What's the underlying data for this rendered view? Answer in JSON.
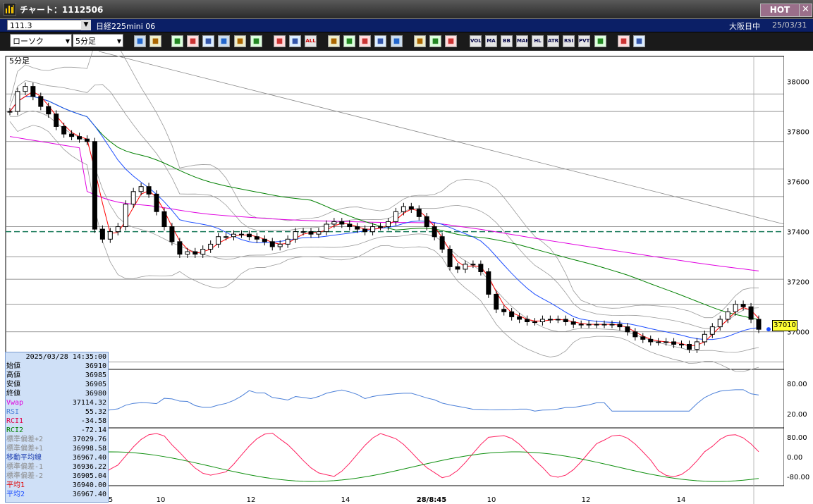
{
  "window": {
    "title": "チャート：1112506",
    "hot_label": "HOT",
    "close_glyph": "✕"
  },
  "symbol": {
    "code": "111.3",
    "name": "日経225mini 06",
    "session": "大阪日中",
    "date": "25/03/31"
  },
  "toolbar": {
    "chart_type": "ローソク",
    "interval": "5分足",
    "buttons": [
      "zoom",
      "grid",
      "trend",
      "pen",
      "cursor",
      "redo",
      "copy",
      "delete",
      "box",
      "box2",
      "ALL",
      "aim",
      "search",
      "split",
      "add",
      "note",
      "settings",
      "tool",
      "color",
      "VOL",
      "MA",
      "BB",
      "MAE",
      "HL",
      "ATR",
      "RSI",
      "PVT",
      "frame",
      "Log",
      "window"
    ]
  },
  "chart_label": "5分足",
  "price_tag": "37010",
  "colors": {
    "sma_short": "#ff0000",
    "sma_long": "#1e4fff",
    "vwap": "#e000e0",
    "long_ma": "#008000",
    "band": "#9a9a9a",
    "rsi": "#4a7fd8",
    "rci1": "#ff2060",
    "rci2": "#109010",
    "panel_bg": "#cfe0f7"
  },
  "chart_data": [
    {
      "type": "candlestick",
      "title": "5分足",
      "x_ticks": [
        "5",
        "10",
        "12",
        "14",
        "28/8:45",
        "10",
        "12",
        "14"
      ],
      "y_ticks": [
        38000,
        37800,
        37600,
        37400,
        37200,
        37000
      ],
      "ylim": [
        36850,
        38100
      ],
      "dashed_level": 37400,
      "last_price": 37010,
      "close_series": [
        37880,
        37960,
        37980,
        37940,
        37900,
        37870,
        37820,
        37790,
        37780,
        37770,
        37760,
        37410,
        37370,
        37400,
        37420,
        37510,
        37560,
        37580,
        37550,
        37480,
        37420,
        37360,
        37310,
        37320,
        37310,
        37330,
        37350,
        37380,
        37380,
        37390,
        37390,
        37380,
        37370,
        37360,
        37340,
        37350,
        37370,
        37400,
        37400,
        37390,
        37400,
        37430,
        37440,
        37430,
        37420,
        37410,
        37400,
        37420,
        37420,
        37440,
        37480,
        37500,
        37490,
        37460,
        37420,
        37380,
        37330,
        37260,
        37250,
        37270,
        37270,
        37240,
        37150,
        37090,
        37080,
        37060,
        37050,
        37040,
        37040,
        37050,
        37050,
        37050,
        37040,
        37030,
        37030,
        37030,
        37030,
        37030,
        37030,
        37020,
        37000,
        36980,
        36970,
        36960,
        36960,
        36960,
        36950,
        36950,
        36930,
        36960,
        36990,
        37020,
        37050,
        37080,
        37110,
        37100,
        37050,
        37010
      ]
    },
    {
      "type": "line",
      "title": "RSI",
      "y_ticks": [
        "80.00",
        "20.00"
      ],
      "ylim": [
        0,
        100
      ]
    },
    {
      "type": "line",
      "title": "RCI",
      "y_ticks": [
        "80.00",
        "0.00",
        "-80.00"
      ],
      "ylim": [
        -100,
        100
      ]
    }
  ],
  "data_panel": {
    "datetime": "2025/03/28 14:35:00",
    "rows": [
      {
        "k": "始値",
        "v": "36910",
        "c": "#000000"
      },
      {
        "k": "高値",
        "v": "36985",
        "c": "#000000"
      },
      {
        "k": "安値",
        "v": "36905",
        "c": "#000000"
      },
      {
        "k": "終値",
        "v": "36980",
        "c": "#000000"
      },
      {
        "k": "Vwap",
        "v": "37114.32",
        "c": "#e000e0"
      },
      {
        "k": "RSI",
        "v": "55.32",
        "c": "#4a7fd8"
      },
      {
        "k": "RCI1",
        "v": "-34.58",
        "c": "#e0004a"
      },
      {
        "k": "RCI2",
        "v": "-72.14",
        "c": "#008000"
      },
      {
        "k": "標準偏差+2",
        "v": "37029.76",
        "c": "#8a8a8a"
      },
      {
        "k": "標準偏差+1",
        "v": "36998.58",
        "c": "#8a8a8a"
      },
      {
        "k": "移動平均線",
        "v": "36967.40",
        "c": "#1e3fb0"
      },
      {
        "k": "標準偏差-1",
        "v": "36936.22",
        "c": "#8a8a8a"
      },
      {
        "k": "標準偏差-2",
        "v": "36905.04",
        "c": "#8a8a8a"
      },
      {
        "k": "平均1",
        "v": "36940.00",
        "c": "#e00000"
      },
      {
        "k": "平均2",
        "v": "36967.40",
        "c": "#1e4fff"
      }
    ]
  }
}
